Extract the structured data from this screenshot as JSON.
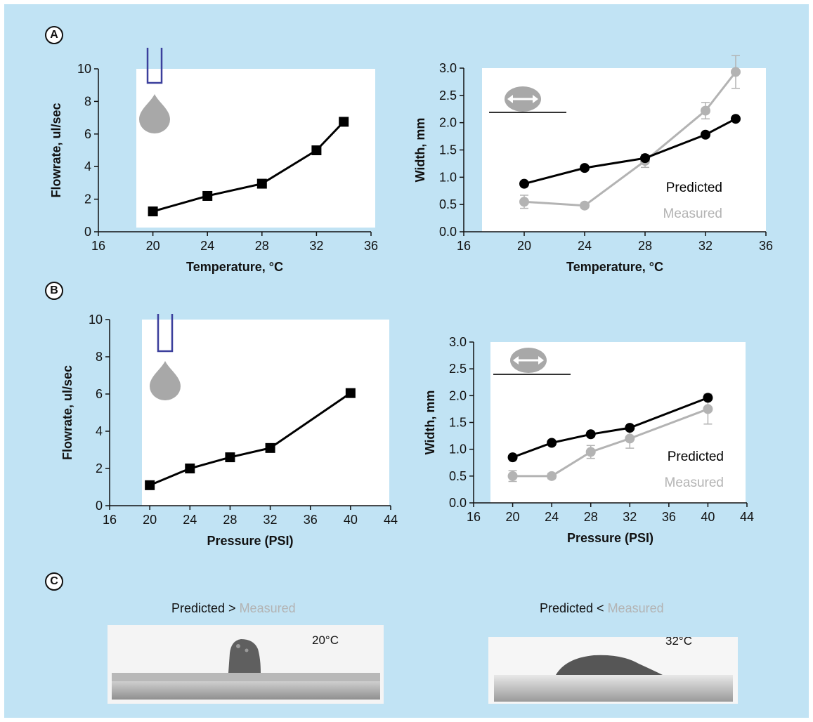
{
  "panels": {
    "a": "A",
    "b": "B",
    "c": "C"
  },
  "colors": {
    "background": "#c1e3f4",
    "predicted": "#000000",
    "measured": "#b3b3b3",
    "plot_area": "#ffffff",
    "nozzle": "#3b3f9c"
  },
  "chart_data": [
    {
      "id": "a-flowrate",
      "type": "line",
      "title": "",
      "xlabel": "Temperature, °C",
      "ylabel": "Flowrate, ul/sec",
      "xlim": [
        16,
        36
      ],
      "ylim": [
        0,
        10
      ],
      "xticks": [
        16,
        20,
        24,
        28,
        32,
        36
      ],
      "yticks": [
        0,
        2,
        4,
        6,
        8,
        10
      ],
      "icon": "nozzle-droplet-icon",
      "series": [
        {
          "x": [
            20,
            24,
            28,
            32,
            34
          ],
          "y": [
            1.25,
            2.2,
            2.95,
            5.0,
            6.75
          ],
          "marker": "square",
          "color": "#000000"
        }
      ]
    },
    {
      "id": "a-width",
      "type": "line",
      "title": "",
      "xlabel": "Temperature, °C",
      "ylabel": "Width, mm",
      "xlim": [
        16,
        36
      ],
      "ylim": [
        0,
        3.0
      ],
      "xticks": [
        16,
        20,
        24,
        28,
        32,
        36
      ],
      "yticks": [
        "0.0",
        "0.5",
        "1.0",
        "1.5",
        "2.0",
        "2.5",
        "3.0"
      ],
      "icon": "droplet-width-icon",
      "legend": [
        "Predicted",
        "Measured"
      ],
      "legend_position": "right",
      "series": [
        {
          "name": "Predicted",
          "x": [
            20,
            24,
            28,
            32,
            34
          ],
          "y": [
            0.88,
            1.17,
            1.35,
            1.78,
            2.07
          ],
          "error": [
            0,
            0,
            0,
            0,
            0
          ],
          "marker": "circle",
          "color": "#000000"
        },
        {
          "name": "Measured",
          "x": [
            20,
            24,
            28,
            32,
            34
          ],
          "y": [
            0.55,
            0.48,
            1.3,
            2.22,
            2.93
          ],
          "error": [
            0.12,
            0.04,
            0.12,
            0.15,
            0.3
          ],
          "marker": "circle",
          "color": "#b3b3b3"
        }
      ]
    },
    {
      "id": "b-flowrate",
      "type": "line",
      "title": "",
      "xlabel": "Pressure (PSI)",
      "ylabel": "Flowrate, ul/sec",
      "xlim": [
        16,
        44
      ],
      "ylim": [
        0,
        10
      ],
      "xticks": [
        16,
        20,
        24,
        28,
        32,
        36,
        40,
        44
      ],
      "yticks": [
        0,
        2,
        4,
        6,
        8,
        10
      ],
      "icon": "nozzle-droplet-icon",
      "series": [
        {
          "x": [
            20,
            24,
            28,
            32,
            40
          ],
          "y": [
            1.1,
            2.0,
            2.6,
            3.1,
            6.05
          ],
          "marker": "square",
          "color": "#000000"
        }
      ]
    },
    {
      "id": "b-width",
      "type": "line",
      "title": "",
      "xlabel": "Pressure (PSI)",
      "ylabel": "Width, mm",
      "xlim": [
        16,
        44
      ],
      "ylim": [
        0,
        3.0
      ],
      "xticks": [
        16,
        20,
        24,
        28,
        32,
        36,
        40,
        44
      ],
      "yticks": [
        "0.0",
        "0.5",
        "1.0",
        "1.5",
        "2.0",
        "2.5",
        "3.0"
      ],
      "icon": "droplet-width-icon",
      "legend": [
        "Predicted",
        "Measured"
      ],
      "legend_position": "right",
      "series": [
        {
          "name": "Predicted",
          "x": [
            20,
            24,
            28,
            32,
            40
          ],
          "y": [
            0.85,
            1.12,
            1.28,
            1.4,
            1.96
          ],
          "error": [
            0,
            0,
            0,
            0,
            0
          ],
          "marker": "circle",
          "color": "#000000"
        },
        {
          "name": "Measured",
          "x": [
            20,
            24,
            28,
            32,
            40
          ],
          "y": [
            0.5,
            0.5,
            0.95,
            1.2,
            1.75
          ],
          "error": [
            0.1,
            0.05,
            0.12,
            0.18,
            0.28
          ],
          "marker": "circle",
          "color": "#b3b3b3"
        }
      ]
    }
  ],
  "panel_c": {
    "left": {
      "title_pred": "Predicted",
      "title_op": " > ",
      "title_meas": "Measured",
      "temp": "20°C"
    },
    "right": {
      "title_pred": "Predicted",
      "title_op": " < ",
      "title_meas": "Measured",
      "temp": "32°C"
    }
  }
}
